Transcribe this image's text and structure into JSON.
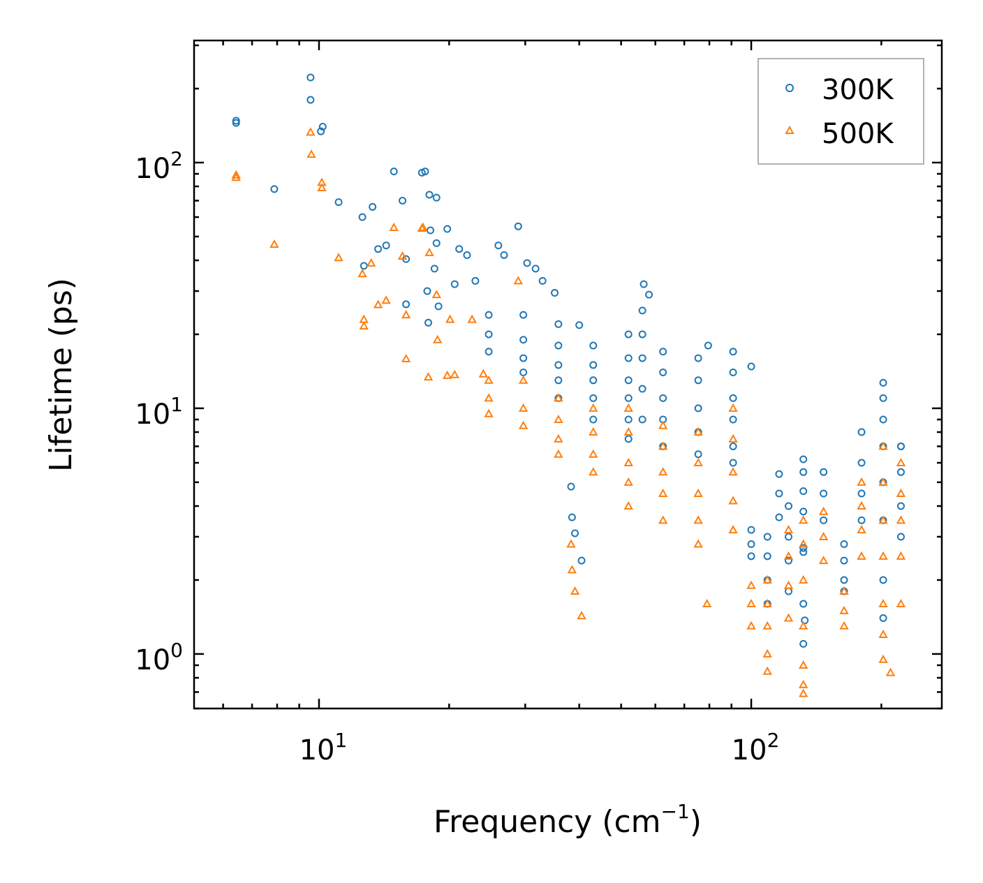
{
  "chart_data": {
    "type": "scatter",
    "xscale": "log",
    "yscale": "log",
    "xlabel": {
      "text": "Frequency (cm",
      "sup": "−1",
      "close": ")"
    },
    "ylabel": "Lifetime (ps)",
    "xlim": [
      5.14,
      276
    ],
    "ylim": [
      0.6,
      314
    ],
    "xticks": [
      {
        "value": 10,
        "base": "10",
        "exp": "1"
      },
      {
        "value": 100,
        "base": "10",
        "exp": "2"
      }
    ],
    "yticks": [
      {
        "value": 1,
        "base": "10",
        "exp": "0"
      },
      {
        "value": 10,
        "base": "10",
        "exp": "1"
      },
      {
        "value": 100,
        "base": "10",
        "exp": "2"
      }
    ],
    "grid": false,
    "legend_position": "top-right",
    "series": [
      {
        "name": "300K",
        "marker": "circle",
        "color": "#1f77b4",
        "points": [
          [
            6.43,
            148
          ],
          [
            6.43,
            145
          ],
          [
            7.88,
            78
          ],
          [
            9.56,
            222
          ],
          [
            9.56,
            180
          ],
          [
            10.2,
            140
          ],
          [
            10.1,
            134
          ],
          [
            11.1,
            69
          ],
          [
            12.6,
            60
          ],
          [
            12.7,
            38
          ],
          [
            13.3,
            66
          ],
          [
            13.7,
            44.5
          ],
          [
            14.3,
            46
          ],
          [
            14.9,
            92
          ],
          [
            15.6,
            70
          ],
          [
            15.9,
            26.5
          ],
          [
            15.9,
            40.5
          ],
          [
            17.3,
            91
          ],
          [
            17.6,
            92
          ],
          [
            18.0,
            74
          ],
          [
            18.7,
            72
          ],
          [
            18.1,
            53
          ],
          [
            18.7,
            47
          ],
          [
            19.8,
            53.7
          ],
          [
            17.9,
            22.3
          ],
          [
            17.8,
            30
          ],
          [
            18.5,
            37
          ],
          [
            18.9,
            26
          ],
          [
            21.1,
            44.5
          ],
          [
            22.0,
            42
          ],
          [
            20.6,
            32
          ],
          [
            23,
            33
          ],
          [
            26.0,
            46
          ],
          [
            26.8,
            42
          ],
          [
            28.9,
            55
          ],
          [
            30.3,
            39
          ],
          [
            31.7,
            37
          ],
          [
            32.9,
            33
          ],
          [
            35.1,
            29.5
          ],
          [
            40,
            21.8
          ],
          [
            38.3,
            4.8
          ],
          [
            38.5,
            3.6
          ],
          [
            39.1,
            3.1
          ],
          [
            40.5,
            2.4
          ],
          [
            56.4,
            32
          ],
          [
            58,
            29
          ],
          [
            79.5,
            18
          ],
          [
            100,
            14.8
          ],
          [
            116,
            5.4
          ],
          [
            132,
            2.6
          ],
          [
            133,
            1.37
          ],
          [
            132,
            1.1
          ],
          [
            202,
            12.7
          ],
          [
            222,
            7.0
          ],
          [
            24.7,
            24
          ],
          [
            24.7,
            20
          ],
          [
            24.7,
            17
          ],
          [
            29.7,
            24
          ],
          [
            29.7,
            19
          ],
          [
            29.7,
            16
          ],
          [
            29.7,
            14
          ],
          [
            35.8,
            22
          ],
          [
            35.8,
            18
          ],
          [
            35.8,
            15
          ],
          [
            35.8,
            13
          ],
          [
            35.8,
            11
          ],
          [
            43.1,
            18
          ],
          [
            43.1,
            15
          ],
          [
            43.1,
            13
          ],
          [
            43.1,
            11
          ],
          [
            43.1,
            9
          ],
          [
            52,
            20
          ],
          [
            52,
            16
          ],
          [
            52,
            13
          ],
          [
            52,
            11
          ],
          [
            52,
            9
          ],
          [
            52,
            7.5
          ],
          [
            56,
            25
          ],
          [
            56,
            20
          ],
          [
            56,
            16
          ],
          [
            56,
            12
          ],
          [
            56,
            9
          ],
          [
            62.5,
            17
          ],
          [
            62.5,
            14
          ],
          [
            62.5,
            11
          ],
          [
            62.5,
            9
          ],
          [
            62.5,
            7
          ],
          [
            75.4,
            16
          ],
          [
            75.4,
            13
          ],
          [
            75.4,
            10
          ],
          [
            75.4,
            8
          ],
          [
            75.4,
            6.5
          ],
          [
            90.8,
            17
          ],
          [
            90.8,
            14
          ],
          [
            90.8,
            11
          ],
          [
            90.8,
            9
          ],
          [
            90.8,
            7
          ],
          [
            90.8,
            6
          ],
          [
            100,
            3.2
          ],
          [
            100,
            2.8
          ],
          [
            100,
            2.5
          ],
          [
            109,
            3
          ],
          [
            109,
            2.5
          ],
          [
            109,
            2
          ],
          [
            109,
            1.6
          ],
          [
            116,
            4.5
          ],
          [
            116,
            3.6
          ],
          [
            122,
            4
          ],
          [
            122,
            3
          ],
          [
            122,
            2.4
          ],
          [
            122,
            1.8
          ],
          [
            132,
            6.2
          ],
          [
            132,
            5.5
          ],
          [
            132,
            4.6
          ],
          [
            132,
            3.8
          ],
          [
            132,
            2.7
          ],
          [
            132,
            1.6
          ],
          [
            147,
            5.5
          ],
          [
            147,
            4.5
          ],
          [
            147,
            3.5
          ],
          [
            164,
            2.8
          ],
          [
            164,
            2.4
          ],
          [
            164,
            2
          ],
          [
            164,
            1.8
          ],
          [
            180,
            8
          ],
          [
            180,
            6
          ],
          [
            180,
            4.5
          ],
          [
            180,
            3.5
          ],
          [
            202,
            11
          ],
          [
            202,
            9
          ],
          [
            202,
            7
          ],
          [
            202,
            5
          ],
          [
            202,
            3.5
          ],
          [
            202,
            2
          ],
          [
            202,
            1.4
          ],
          [
            222,
            7
          ],
          [
            222,
            5.5
          ],
          [
            222,
            4
          ],
          [
            222,
            3
          ]
        ]
      },
      {
        "name": "500K",
        "marker": "triangle",
        "color": "#ff7f0e",
        "points": [
          [
            6.43,
            89
          ],
          [
            6.43,
            87
          ],
          [
            7.88,
            46.5
          ],
          [
            9.56,
            133
          ],
          [
            9.6,
            108
          ],
          [
            10.15,
            83
          ],
          [
            10.15,
            79
          ],
          [
            11.1,
            41
          ],
          [
            12.6,
            35.3
          ],
          [
            12.7,
            23
          ],
          [
            12.7,
            21.6
          ],
          [
            13.2,
            39
          ],
          [
            13.7,
            26.4
          ],
          [
            14.3,
            27.5
          ],
          [
            14.9,
            54.4
          ],
          [
            15.6,
            41.6
          ],
          [
            15.9,
            24
          ],
          [
            15.9,
            15.9
          ],
          [
            17.3,
            54
          ],
          [
            17.4,
            54.5
          ],
          [
            18.0,
            43
          ],
          [
            18.7,
            29
          ],
          [
            17.9,
            13.4
          ],
          [
            18.8,
            19
          ],
          [
            20.1,
            23
          ],
          [
            19.8,
            13.6
          ],
          [
            20.6,
            13.7
          ],
          [
            22.6,
            23
          ],
          [
            24,
            13.8
          ],
          [
            28.9,
            33
          ],
          [
            38.3,
            2.8
          ],
          [
            38.5,
            2.2
          ],
          [
            39.1,
            1.8
          ],
          [
            40.5,
            1.43
          ],
          [
            79,
            1.6
          ],
          [
            132,
            0.69
          ],
          [
            210,
            0.84
          ],
          [
            24.7,
            13
          ],
          [
            24.7,
            11
          ],
          [
            24.7,
            9.5
          ],
          [
            29.7,
            13
          ],
          [
            29.7,
            10
          ],
          [
            29.7,
            8.5
          ],
          [
            35.8,
            11
          ],
          [
            35.8,
            9
          ],
          [
            35.8,
            7.5
          ],
          [
            35.8,
            6.5
          ],
          [
            43.1,
            10
          ],
          [
            43.1,
            8
          ],
          [
            43.1,
            6.5
          ],
          [
            43.1,
            5.5
          ],
          [
            52,
            10
          ],
          [
            52,
            8
          ],
          [
            52,
            6
          ],
          [
            52,
            5
          ],
          [
            52,
            4
          ],
          [
            62.5,
            8.5
          ],
          [
            62.5,
            7
          ],
          [
            62.5,
            5.5
          ],
          [
            62.5,
            4.5
          ],
          [
            62.5,
            3.5
          ],
          [
            75.4,
            8
          ],
          [
            75.4,
            6
          ],
          [
            75.4,
            4.5
          ],
          [
            75.4,
            3.5
          ],
          [
            75.4,
            2.8
          ],
          [
            90.8,
            10
          ],
          [
            90.8,
            7.5
          ],
          [
            90.8,
            5.5
          ],
          [
            90.8,
            4.2
          ],
          [
            90.8,
            3.2
          ],
          [
            100,
            1.9
          ],
          [
            100,
            1.6
          ],
          [
            100,
            1.3
          ],
          [
            109,
            2
          ],
          [
            109,
            1.6
          ],
          [
            109,
            1.3
          ],
          [
            109,
            1.0
          ],
          [
            109,
            0.85
          ],
          [
            122,
            3.2
          ],
          [
            122,
            2.5
          ],
          [
            122,
            1.9
          ],
          [
            122,
            1.4
          ],
          [
            132,
            3.5
          ],
          [
            132,
            2.8
          ],
          [
            132,
            2
          ],
          [
            132,
            1.3
          ],
          [
            132,
            0.9
          ],
          [
            132,
            0.75
          ],
          [
            147,
            3.8
          ],
          [
            147,
            3
          ],
          [
            147,
            2.4
          ],
          [
            164,
            1.8
          ],
          [
            164,
            1.5
          ],
          [
            164,
            1.3
          ],
          [
            180,
            5
          ],
          [
            180,
            4
          ],
          [
            180,
            3.2
          ],
          [
            180,
            2.5
          ],
          [
            202,
            7
          ],
          [
            202,
            5
          ],
          [
            202,
            3.5
          ],
          [
            202,
            2.5
          ],
          [
            202,
            1.6
          ],
          [
            202,
            1.2
          ],
          [
            202,
            0.95
          ],
          [
            222,
            6
          ],
          [
            222,
            4.5
          ],
          [
            222,
            3.5
          ],
          [
            222,
            2.5
          ],
          [
            222,
            1.6
          ]
        ]
      }
    ]
  }
}
